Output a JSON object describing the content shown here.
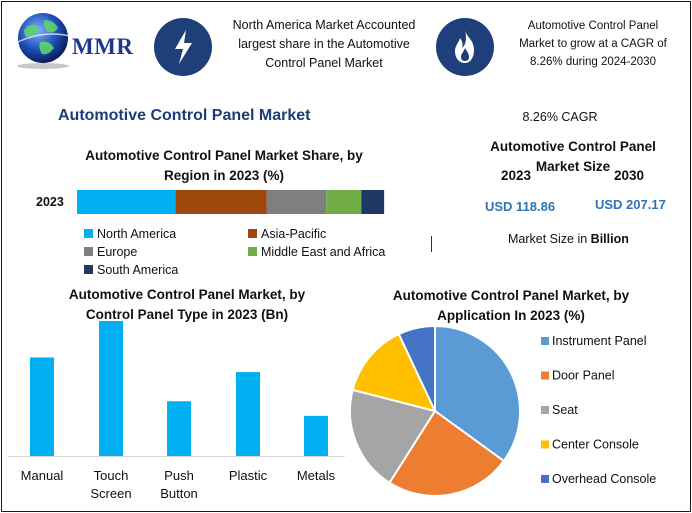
{
  "header": {
    "logo_text": "MMR",
    "callout_left": [
      "North America Market Accounted",
      "largest share in the Automotive",
      "Control Panel Market"
    ],
    "callout_right": [
      "Automotive Control Panel",
      "Market to grow at a CAGR of",
      "8.26% during 2024-2030"
    ],
    "icon_left": "lightning-bolt-icon",
    "icon_right": "flame-icon"
  },
  "main_title": "Automotive Control Panel Market",
  "market_size": {
    "cagr": "8.26% CAGR",
    "title": "Automotive Control Panel Market Size",
    "year_a": "2023",
    "year_b": "2030",
    "value_a": "USD 118.86",
    "value_b": "USD 207.17",
    "footnote_prefix": "Market Size in ",
    "footnote_unit": "Billion"
  },
  "colors": {
    "title_blue": "#1f3c7a",
    "value_blue": "#2e75b6",
    "bar_cyan": "#00b0f0",
    "icon_navy": "#1f3f7a"
  },
  "chart_data": [
    {
      "type": "bar",
      "orientation": "horizontal-stacked",
      "title": [
        "Automotive Control Panel Market Share, by",
        "Region in 2023 (%)"
      ],
      "categories": [
        "2023"
      ],
      "series": [
        {
          "name": "North America",
          "values": [
            28
          ],
          "color": "#00b0f0"
        },
        {
          "name": "Asia-Pacific",
          "values": [
            26
          ],
          "color": "#9e480e"
        },
        {
          "name": "Europe",
          "values": [
            17
          ],
          "color": "#7f7f7f"
        },
        {
          "name": "Middle East and Africa",
          "values": [
            10
          ],
          "color": "#70ad47"
        },
        {
          "name": "South America",
          "values": [
            6.5
          ],
          "color": "#1f3864"
        }
      ],
      "legend": "bottom",
      "grid": false
    },
    {
      "type": "bar",
      "title": [
        "Automotive Control Panel Market, by",
        "Control Panel Type in 2023 (Bn)"
      ],
      "categories": [
        [
          "Manual"
        ],
        [
          "Touch",
          "Screen"
        ],
        [
          "Push",
          "Button"
        ],
        [
          "Plastic"
        ],
        [
          "Metals"
        ]
      ],
      "values": [
        27,
        37,
        15,
        23,
        11
      ],
      "ylim": [
        0,
        37
      ],
      "color": "#00b0f0",
      "grid": false
    },
    {
      "type": "pie",
      "title": [
        "Automotive Control Panel Market, by",
        "Application In 2023 (%)"
      ],
      "labels": [
        "Instrument Panel",
        "Door Panel",
        "Seat",
        "Center Console",
        "Overhead Console"
      ],
      "values": [
        35,
        24,
        20,
        14,
        7
      ],
      "colors": [
        "#5b9bd5",
        "#ed7d31",
        "#a5a5a5",
        "#ffc000",
        "#4472c4"
      ],
      "legend": "right"
    }
  ]
}
